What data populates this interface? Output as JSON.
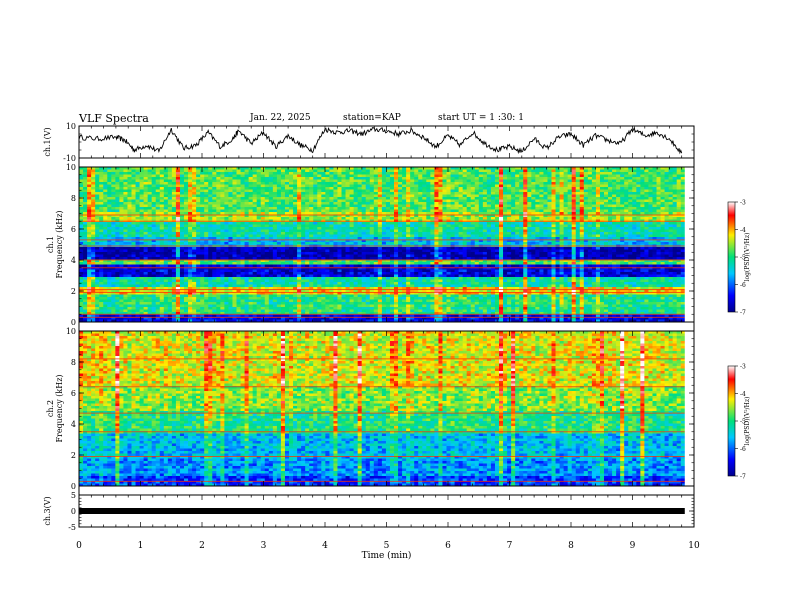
{
  "header": {
    "title": "VLF Spectra",
    "date": "Jan. 22, 2025",
    "station": "station=KAP",
    "start": "start UT = 1 :30: 1"
  },
  "colors": {
    "low": "#00008c",
    "mid_low": "#00c8ff",
    "mid": "#00e07a",
    "mid_high": "#ffee00",
    "high": "#ff0000",
    "band_dark": "#2828ff",
    "band_line": "#ff3000"
  },
  "chart_data": [
    {
      "id": "ch1-voltage",
      "type": "line",
      "ylabel": "ch.1(V)",
      "ylim": [
        -10,
        10
      ],
      "yticks": [
        "10",
        "-10"
      ],
      "xlim": [
        0,
        10
      ],
      "x": [
        0,
        0.3,
        0.6,
        0.75,
        0.9,
        1.1,
        1.3,
        1.5,
        1.7,
        1.9,
        2.1,
        2.3,
        2.5,
        2.6,
        2.8,
        3.0,
        3.2,
        3.4,
        3.6,
        3.8,
        4.0,
        4.2,
        4.4,
        4.6,
        4.8,
        5.0,
        5.2,
        5.4,
        5.6,
        5.8,
        6.0,
        6.2,
        6.4,
        6.6,
        6.8,
        7.0,
        7.2,
        7.4,
        7.6,
        7.8,
        8.0,
        8.2,
        8.4,
        8.6,
        8.8,
        9.0,
        9.2,
        9.4,
        9.6,
        9.8
      ],
      "y": [
        3,
        2,
        3,
        1,
        -5,
        -2,
        -6,
        8,
        -4,
        -2,
        6,
        -3,
        2,
        7,
        -1,
        6,
        -3,
        4,
        -2,
        -5,
        8,
        6,
        7,
        5,
        8,
        7,
        5,
        7,
        3,
        -3,
        4,
        -2,
        6,
        -1,
        -5,
        -3,
        -6,
        2,
        -4,
        3,
        5,
        -2,
        4,
        1,
        -1,
        8,
        4,
        6,
        2,
        -7
      ]
    },
    {
      "id": "ch1-spectrogram",
      "type": "heatmap",
      "ylabel_1": "ch.1",
      "ylabel_2": "Frequency (kHz)",
      "ylim": [
        0,
        10
      ],
      "yticks": [
        "0",
        "2",
        "4",
        "6",
        "8",
        "10"
      ],
      "colorbar_label": "log(PSD)(V²/Hz)",
      "colorbar_ticks": [
        "-3",
        "-4",
        "-5",
        "-6",
        "-7"
      ],
      "colorbar_range": [
        -7,
        -3
      ],
      "bands": [
        {
          "from": 0.0,
          "to": 0.5,
          "level": -6.5
        },
        {
          "from": 0.5,
          "to": 1.8,
          "level": -5.0
        },
        {
          "from": 1.8,
          "to": 2.3,
          "level": -4.2
        },
        {
          "from": 2.3,
          "to": 2.9,
          "level": -5.2
        },
        {
          "from": 2.9,
          "to": 3.7,
          "level": -6.6
        },
        {
          "from": 3.7,
          "to": 4.0,
          "level": -4.8
        },
        {
          "from": 4.0,
          "to": 4.9,
          "level": -6.8
        },
        {
          "from": 4.9,
          "to": 5.5,
          "level": -5.6
        },
        {
          "from": 5.5,
          "to": 6.5,
          "level": -5.2
        },
        {
          "from": 6.5,
          "to": 7.1,
          "level": -4.5
        },
        {
          "from": 7.1,
          "to": 10.0,
          "level": -4.8
        }
      ],
      "lines_khz": [
        0.3,
        0.5,
        1.9,
        2.1,
        3.5,
        4.0,
        4.9,
        5.3,
        6.5,
        6.9
      ]
    },
    {
      "id": "ch2-spectrogram",
      "type": "heatmap",
      "ylabel_1": "ch.2",
      "ylabel_2": "Frequency (kHz)",
      "ylim": [
        0,
        10
      ],
      "yticks": [
        "0",
        "2",
        "4",
        "6",
        "8",
        "10"
      ],
      "colorbar_label": "log(PSD)(V²/Hz)",
      "colorbar_ticks": [
        "-3",
        "-4",
        "-5",
        "-6",
        "-7"
      ],
      "colorbar_range": [
        -7,
        -3
      ],
      "bands": [
        {
          "from": 0.0,
          "to": 0.6,
          "level": -6.2
        },
        {
          "from": 0.6,
          "to": 1.8,
          "level": -5.8
        },
        {
          "from": 1.8,
          "to": 3.4,
          "level": -5.6
        },
        {
          "from": 3.4,
          "to": 4.8,
          "level": -5.0
        },
        {
          "from": 4.8,
          "to": 6.5,
          "level": -4.6
        },
        {
          "from": 6.5,
          "to": 10.0,
          "level": -4.3
        }
      ],
      "lines_khz": [
        0.3,
        1.9,
        3.5,
        4.7,
        6.4,
        8.2
      ]
    },
    {
      "id": "ch3-voltage",
      "type": "line",
      "ylabel": "ch.3(V)",
      "ylim": [
        -5,
        5
      ],
      "yticks": [
        "5",
        "0",
        "-5"
      ],
      "xlim": [
        0,
        10
      ],
      "x": [
        0,
        9.85
      ],
      "y": [
        0,
        0
      ]
    }
  ],
  "xaxis": {
    "label": "Time (min)",
    "ticks": [
      "0",
      "1",
      "2",
      "3",
      "4",
      "5",
      "6",
      "7",
      "8",
      "9",
      "10"
    ],
    "range": [
      0,
      10
    ]
  }
}
